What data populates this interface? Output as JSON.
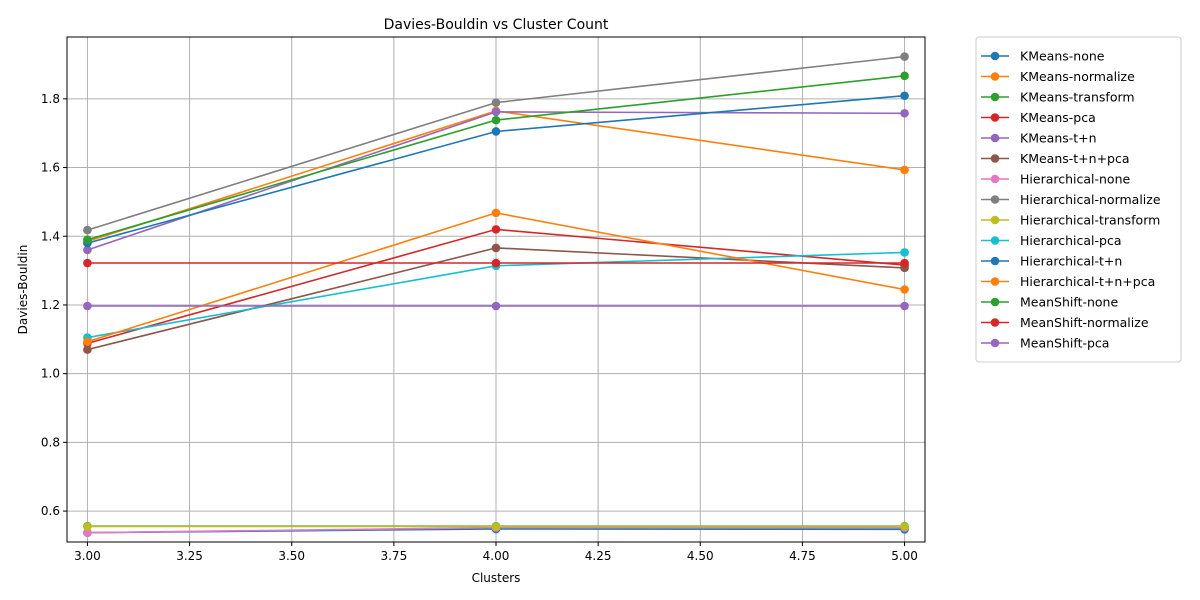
{
  "chart_data": {
    "type": "line",
    "title": "Davies-Bouldin vs Cluster Count",
    "xlabel": "Clusters",
    "ylabel": "Davies-Bouldin",
    "xlim": [
      2.95,
      5.05
    ],
    "ylim": [
      0.51,
      1.98
    ],
    "xticks": [
      3.0,
      3.25,
      3.5,
      3.75,
      4.0,
      4.25,
      4.5,
      4.75,
      5.0
    ],
    "xtick_labels": [
      "3.00",
      "3.25",
      "3.50",
      "3.75",
      "4.00",
      "4.25",
      "4.50",
      "4.75",
      "5.00"
    ],
    "yticks": [
      0.6,
      0.8,
      1.0,
      1.2,
      1.4,
      1.6,
      1.8
    ],
    "ytick_labels": [
      "0.6",
      "0.8",
      "1.0",
      "1.2",
      "1.4",
      "1.6",
      "1.8"
    ],
    "grid": true,
    "legend_position": "outside-right",
    "x": [
      3,
      4,
      5
    ],
    "series": [
      {
        "name": "KMeans-none",
        "color": "#1f77b4",
        "values": [
          0.537,
          0.548,
          0.547
        ]
      },
      {
        "name": "KMeans-normalize",
        "color": "#ff7f0e",
        "values": [
          1.385,
          1.765,
          1.593
        ]
      },
      {
        "name": "KMeans-transform",
        "color": "#2ca02c",
        "values": [
          0.556,
          0.556,
          0.556
        ]
      },
      {
        "name": "KMeans-pca",
        "color": "#d62728",
        "values": [
          1.088,
          1.42,
          1.316
        ]
      },
      {
        "name": "KMeans-t+n",
        "color": "#9467bd",
        "values": [
          1.36,
          1.762,
          1.758
        ]
      },
      {
        "name": "KMeans-t+n+pca",
        "color": "#8c564b",
        "values": [
          1.07,
          1.366,
          1.308
        ]
      },
      {
        "name": "Hierarchical-none",
        "color": "#e377c2",
        "values": [
          0.537,
          0.552,
          0.552
        ]
      },
      {
        "name": "Hierarchical-normalize",
        "color": "#7f7f7f",
        "values": [
          1.418,
          1.789,
          1.923
        ]
      },
      {
        "name": "Hierarchical-transform",
        "color": "#bcbd22",
        "values": [
          0.555,
          0.555,
          0.555
        ]
      },
      {
        "name": "Hierarchical-pca",
        "color": "#17becf",
        "values": [
          1.105,
          1.314,
          1.353
        ]
      },
      {
        "name": "Hierarchical-t+n",
        "color": "#1f77b4",
        "values": [
          1.38,
          1.705,
          1.809
        ]
      },
      {
        "name": "Hierarchical-t+n+pca",
        "color": "#ff7f0e",
        "values": [
          1.093,
          1.468,
          1.245
        ]
      },
      {
        "name": "MeanShift-none",
        "color": "#2ca02c",
        "values": [
          1.39,
          1.738,
          1.867
        ]
      },
      {
        "name": "MeanShift-normalize",
        "color": "#d62728",
        "values": [
          1.322,
          1.322,
          1.322
        ]
      },
      {
        "name": "MeanShift-pca",
        "color": "#9467bd",
        "values": [
          1.197,
          1.197,
          1.197
        ]
      }
    ]
  }
}
